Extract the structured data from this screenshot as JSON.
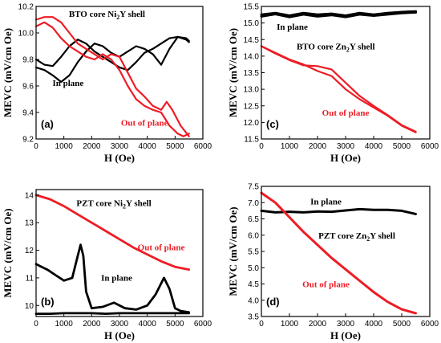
{
  "chart_data": [
    {
      "id": "a",
      "type": "line",
      "panel_label": "(a)",
      "xlabel": "H (Oe)",
      "ylabel": "MEVC (mV/cm Oe)",
      "xlim": [
        0,
        6000
      ],
      "ylim": [
        9.2,
        10.2
      ],
      "xticks": [
        0,
        1000,
        2000,
        3000,
        4000,
        5000,
        6000
      ],
      "yticks": [
        9.2,
        9.4,
        9.6,
        9.8,
        10.0,
        10.2
      ],
      "ytick_labels": [
        "9.2",
        "9.4",
        "9.6",
        "9.8",
        "10.0",
        "10.2"
      ],
      "annotations": [
        {
          "text": "BTO core Ni",
          "sub": "2",
          "tail": "Y shell",
          "x": 2550,
          "y": 10.12,
          "color": "#000000"
        },
        {
          "text": "In plane",
          "x": 1150,
          "y": 9.6,
          "color": "#000000"
        },
        {
          "text": "Out of plane",
          "x": 3900,
          "y": 9.3,
          "color": "#ee1c24"
        }
      ],
      "series": [
        {
          "color": "#000000",
          "width": 2.2,
          "x": [
            0,
            300,
            600,
            900,
            1200,
            1500,
            1800,
            2100,
            2400,
            2700,
            3000,
            3300,
            3600,
            3900,
            4200,
            4500,
            4800,
            5100,
            5400,
            5500
          ],
          "y": [
            9.8,
            9.76,
            9.75,
            9.82,
            9.9,
            9.95,
            9.92,
            9.86,
            9.82,
            9.78,
            9.74,
            9.72,
            9.78,
            9.85,
            9.88,
            9.92,
            9.96,
            9.97,
            9.95,
            9.93
          ]
        },
        {
          "color": "#000000",
          "width": 2.2,
          "x": [
            0,
            300,
            600,
            900,
            1200,
            1500,
            1800,
            2100,
            2400,
            2700,
            3000,
            3300,
            3600,
            3900,
            4200,
            4500,
            4800,
            5100,
            5400,
            5500
          ],
          "y": [
            9.74,
            9.72,
            9.68,
            9.63,
            9.68,
            9.78,
            9.86,
            9.92,
            9.9,
            9.85,
            9.82,
            9.86,
            9.9,
            9.88,
            9.84,
            9.76,
            9.88,
            9.97,
            9.96,
            9.94
          ]
        },
        {
          "color": "#ee1c24",
          "width": 2.2,
          "x": [
            0,
            300,
            600,
            900,
            1200,
            1500,
            1800,
            2100,
            2400,
            2700,
            3000,
            3300,
            3600,
            3900,
            4200,
            4500,
            4800,
            5100,
            5300,
            5500
          ],
          "y": [
            10.05,
            10.08,
            10.04,
            9.96,
            9.9,
            9.86,
            9.82,
            9.8,
            9.84,
            9.8,
            9.72,
            9.6,
            9.5,
            9.45,
            9.42,
            9.4,
            9.3,
            9.24,
            9.22,
            9.24
          ]
        },
        {
          "color": "#ee1c24",
          "width": 2.2,
          "x": [
            0,
            300,
            600,
            900,
            1200,
            1500,
            1800,
            2100,
            2400,
            2700,
            3000,
            3300,
            3600,
            3900,
            4200,
            4500,
            4700,
            4900,
            5200,
            5500
          ],
          "y": [
            10.1,
            10.12,
            10.12,
            10.08,
            10.0,
            9.92,
            9.88,
            9.84,
            9.8,
            9.84,
            9.82,
            9.7,
            9.58,
            9.52,
            9.45,
            9.42,
            9.48,
            9.42,
            9.3,
            9.22
          ]
        }
      ]
    },
    {
      "id": "c",
      "type": "line",
      "panel_label": "(c)",
      "xlabel": "H (Oe)",
      "ylabel": "MEVC (mV/cm Oe)",
      "xlim": [
        0,
        6000
      ],
      "ylim": [
        11.5,
        15.5
      ],
      "xticks": [
        0,
        1000,
        2000,
        3000,
        4000,
        5000,
        6000
      ],
      "yticks": [
        11.5,
        12.0,
        12.5,
        13.0,
        13.5,
        14.0,
        14.5,
        15.0,
        15.5
      ],
      "ytick_labels": [
        "11.5",
        "12.0",
        "12.5",
        "13.0",
        "13.5",
        "14.0",
        "14.5",
        "15.0",
        "15.5"
      ],
      "annotations": [
        {
          "text": "In plane",
          "x": 1100,
          "y": 14.8,
          "color": "#000000"
        },
        {
          "text": "BTO core Zn",
          "sub": "2",
          "tail": "Y shell",
          "x": 2650,
          "y": 14.2,
          "color": "#000000"
        },
        {
          "text": "Out of plane",
          "x": 3000,
          "y": 12.2,
          "color": "#ee1c24"
        }
      ],
      "series": [
        {
          "color": "#000000",
          "width": 3.0,
          "x": [
            0,
            500,
            1000,
            1500,
            2000,
            2500,
            3000,
            3500,
            4000,
            4500,
            5000,
            5500
          ],
          "y": [
            15.25,
            15.3,
            15.22,
            15.3,
            15.25,
            15.28,
            15.22,
            15.3,
            15.25,
            15.3,
            15.33,
            15.35
          ]
        },
        {
          "color": "#000000",
          "width": 3.0,
          "x": [
            0,
            500,
            1000,
            1500,
            2000,
            2500,
            3000,
            3500,
            4000,
            4500,
            5000,
            5500
          ],
          "y": [
            15.2,
            15.27,
            15.18,
            15.26,
            15.2,
            15.24,
            15.18,
            15.26,
            15.22,
            15.26,
            15.3,
            15.32
          ]
        },
        {
          "color": "#ee1c24",
          "width": 2.2,
          "x": [
            0,
            500,
            1000,
            1500,
            2000,
            2500,
            3000,
            3500,
            4000,
            4500,
            5000,
            5500
          ],
          "y": [
            14.3,
            14.1,
            13.9,
            13.75,
            13.55,
            13.4,
            13.0,
            12.7,
            12.45,
            12.2,
            11.9,
            11.7
          ]
        },
        {
          "color": "#ee1c24",
          "width": 2.2,
          "x": [
            0,
            500,
            1000,
            1500,
            2000,
            2500,
            3000,
            3500,
            4000,
            4500,
            5000,
            5500
          ],
          "y": [
            14.3,
            14.08,
            13.88,
            13.72,
            13.7,
            13.6,
            13.2,
            12.8,
            12.5,
            12.22,
            11.92,
            11.72
          ]
        }
      ]
    },
    {
      "id": "b",
      "type": "line",
      "panel_label": "(b)",
      "xlabel": "H (Oe)",
      "ylabel": "MEVC (mV/cm Oe)",
      "xlim": [
        0,
        6000
      ],
      "ylim": [
        9.6,
        14.2
      ],
      "xticks": [
        0,
        1000,
        2000,
        3000,
        4000,
        5000,
        6000
      ],
      "yticks": [
        10,
        11,
        12,
        13,
        14
      ],
      "ytick_labels": [
        "10",
        "11",
        "12",
        "13",
        "14"
      ],
      "annotations": [
        {
          "text": "PZT core Ni",
          "sub": "2",
          "tail": "Y shell",
          "x": 2800,
          "y": 13.6,
          "color": "#000000"
        },
        {
          "text": "Out of plane",
          "x": 4500,
          "y": 12.0,
          "color": "#ee1c24"
        },
        {
          "text": "In plane",
          "x": 2900,
          "y": 10.9,
          "color": "#000000"
        }
      ],
      "series": [
        {
          "color": "#ee1c24",
          "width": 2.8,
          "x": [
            0,
            500,
            1000,
            1500,
            2000,
            2500,
            3000,
            3500,
            4000,
            4500,
            5000,
            5500
          ],
          "y": [
            14.0,
            13.85,
            13.6,
            13.3,
            13.0,
            12.7,
            12.4,
            12.1,
            11.85,
            11.6,
            11.4,
            11.3
          ]
        },
        {
          "color": "#000000",
          "width": 2.8,
          "x": [
            0,
            200,
            400,
            700,
            1000,
            1300,
            1500,
            1600,
            1700,
            1800,
            2000,
            2400,
            2800,
            3200,
            3600,
            4000,
            4300,
            4600,
            4800,
            5000,
            5200,
            5500
          ],
          "y": [
            11.5,
            11.4,
            11.3,
            11.1,
            10.9,
            11.0,
            11.8,
            12.2,
            11.8,
            10.5,
            9.9,
            9.95,
            10.1,
            9.9,
            9.85,
            10.0,
            10.4,
            11.0,
            10.6,
            9.9,
            9.8,
            9.75
          ]
        },
        {
          "color": "#000000",
          "width": 2.8,
          "x": [
            0,
            500,
            1000,
            1500,
            2000,
            2500,
            3000,
            3500,
            4000,
            4500,
            5000,
            5500
          ],
          "y": [
            9.7,
            9.7,
            9.72,
            9.72,
            9.72,
            9.7,
            9.72,
            9.72,
            9.72,
            9.72,
            9.72,
            9.72
          ]
        }
      ]
    },
    {
      "id": "d",
      "type": "line",
      "panel_label": "(d)",
      "xlabel": "H (Oe)",
      "ylabel": "MEVC (mV/cm Oe)",
      "xlim": [
        0,
        6000
      ],
      "ylim": [
        3.5,
        7.5
      ],
      "xticks": [
        0,
        1000,
        2000,
        3000,
        4000,
        5000,
        6000
      ],
      "yticks": [
        3.5,
        4.0,
        4.5,
        5.0,
        5.5,
        6.0,
        6.5,
        7.0,
        7.5
      ],
      "ytick_labels": [
        "3.5",
        "4.0",
        "4.5",
        "5.0",
        "5.5",
        "6.0",
        "6.5",
        "7.0",
        "7.5"
      ],
      "annotations": [
        {
          "text": "In plane",
          "x": 2300,
          "y": 6.95,
          "color": "#000000"
        },
        {
          "text": "PZT core Zn",
          "sub": "2",
          "tail": "Y shell",
          "x": 3400,
          "y": 5.9,
          "color": "#000000"
        },
        {
          "text": "Out of plane",
          "x": 2300,
          "y": 4.4,
          "color": "#ee1c24"
        }
      ],
      "series": [
        {
          "color": "#000000",
          "width": 3.0,
          "x": [
            0,
            500,
            1000,
            1500,
            2000,
            2500,
            3000,
            3500,
            4000,
            4500,
            5000,
            5500
          ],
          "y": [
            6.75,
            6.7,
            6.72,
            6.7,
            6.73,
            6.72,
            6.76,
            6.8,
            6.78,
            6.78,
            6.75,
            6.65
          ]
        },
        {
          "color": "#ee1c24",
          "width": 3.0,
          "x": [
            0,
            500,
            1000,
            1500,
            2000,
            2500,
            3000,
            3500,
            4000,
            4500,
            5000,
            5500
          ],
          "y": [
            7.3,
            7.0,
            6.55,
            6.1,
            5.7,
            5.3,
            4.95,
            4.6,
            4.25,
            3.95,
            3.72,
            3.6
          ]
        }
      ]
    }
  ]
}
